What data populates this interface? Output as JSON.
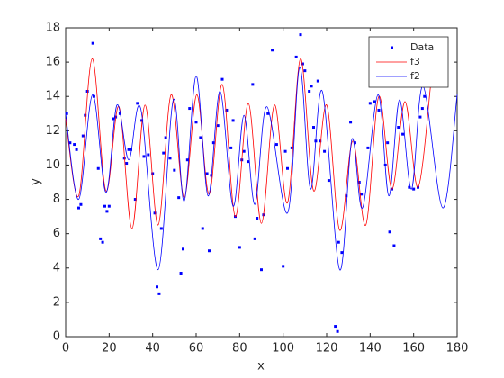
{
  "chart_data": {
    "type": "line",
    "xlabel": "x",
    "ylabel": "y",
    "xlim": [
      0,
      180
    ],
    "ylim": [
      0,
      18
    ],
    "xticks": [
      0,
      20,
      40,
      60,
      80,
      100,
      120,
      140,
      160,
      180
    ],
    "yticks": [
      0,
      2,
      4,
      6,
      8,
      10,
      12,
      14,
      16,
      18
    ],
    "legend": "northeast",
    "series": [
      {
        "name": "Data",
        "color": "#0000ff",
        "style": "markers",
        "x": [
          0.5,
          2,
          4,
          5,
          6,
          7,
          8,
          9,
          10,
          12.5,
          13,
          15,
          16,
          17,
          18,
          19,
          20,
          22,
          23,
          25,
          27,
          28,
          29,
          30,
          32,
          33,
          35,
          36,
          38,
          40,
          41,
          42,
          43,
          44,
          45,
          46,
          48,
          50,
          52,
          53,
          54,
          56,
          57,
          60,
          62,
          63,
          65,
          66,
          67,
          68,
          70,
          72,
          74,
          76,
          77,
          78,
          80,
          81,
          82,
          84,
          86,
          87,
          88,
          90,
          91,
          93,
          95,
          97,
          100,
          101,
          102,
          104,
          106,
          108,
          109,
          110,
          112,
          113,
          114,
          115,
          116,
          117,
          119,
          121,
          124,
          125,
          125.5,
          127,
          129,
          131,
          133,
          135,
          136,
          139,
          140,
          142,
          144,
          147,
          148,
          149,
          150,
          151,
          153,
          155,
          158,
          160,
          162,
          163,
          164,
          165,
          167
        ],
        "values": [
          13.0,
          11.3,
          11.2,
          10.9,
          7.5,
          7.7,
          11.7,
          12.9,
          14.3,
          17.1,
          14.0,
          9.8,
          5.7,
          5.5,
          7.6,
          7.3,
          7.6,
          12.7,
          12.8,
          13.0,
          10.4,
          10.1,
          10.9,
          10.9,
          8.0,
          13.6,
          12.6,
          10.5,
          10.6,
          9.5,
          7.2,
          2.9,
          2.5,
          6.3,
          10.7,
          11.6,
          10.4,
          9.7,
          8.1,
          3.7,
          5.1,
          10.3,
          13.3,
          12.5,
          11.6,
          6.3,
          9.5,
          5.0,
          9.4,
          11.3,
          12.3,
          15.0,
          13.2,
          11.0,
          12.6,
          7.0,
          5.2,
          10.3,
          10.8,
          10.2,
          14.7,
          5.7,
          6.9,
          3.9,
          7.1,
          13.0,
          16.7,
          11.2,
          4.1,
          10.8,
          9.8,
          11.0,
          16.3,
          17.6,
          15.9,
          15.5,
          14.3,
          14.6,
          12.2,
          11.4,
          14.9,
          11.4,
          10.8,
          9.1,
          0.6,
          0.3,
          5.5,
          4.9,
          8.2,
          12.5,
          11.3,
          9.0,
          8.3,
          11.0,
          13.6,
          13.7,
          13.2,
          10.0,
          11.3,
          6.1,
          8.6,
          5.3,
          12.2,
          11.8,
          8.7,
          8.6,
          8.7,
          12.8,
          13.3,
          14.0,
          14.9
        ]
      },
      {
        "name": "f3",
        "color": "#ff0000",
        "style": "line",
        "x": [
          0,
          6,
          12.2,
          18.5,
          24.5,
          30.5,
          36.5,
          42.5,
          48.5,
          54.5,
          60.3,
          66,
          72,
          78,
          84,
          90,
          96,
          102,
          108,
          114,
          120,
          126,
          132,
          138,
          144,
          150,
          156,
          162,
          168
        ],
        "values": [
          12.7,
          8.2,
          16.2,
          8.5,
          13.4,
          6.3,
          13.5,
          6.5,
          14.1,
          8.1,
          14.1,
          8.3,
          14.7,
          7.0,
          13.6,
          6.6,
          13.5,
          7.8,
          16.2,
          8.5,
          13.5,
          6.2,
          11.4,
          6.5,
          14.0,
          8.6,
          13.7,
          8.7,
          14.9
        ]
      },
      {
        "name": "f2",
        "color": "#0000ff",
        "style": "line",
        "x": [
          0,
          6,
          12.4,
          18.5,
          23.6,
          29,
          34.5,
          42.5,
          49.5,
          54.5,
          60,
          65.5,
          71,
          77,
          82,
          87,
          92.5,
          102,
          107.6,
          112.6,
          118,
          126,
          131.6,
          136.5,
          143.6,
          148.6,
          153.5,
          159,
          164.3,
          173.4,
          180
        ],
        "values": [
          13.0,
          8.0,
          14.1,
          8.4,
          13.5,
          10.3,
          13.3,
          3.9,
          13.8,
          7.9,
          15.2,
          8.2,
          14.3,
          7.6,
          12.9,
          7.7,
          13.4,
          7.2,
          15.7,
          8.6,
          14.3,
          3.9,
          11.5,
          7.5,
          14.1,
          8.2,
          13.8,
          8.6,
          14.6,
          7.5,
          14.1
        ]
      }
    ]
  }
}
